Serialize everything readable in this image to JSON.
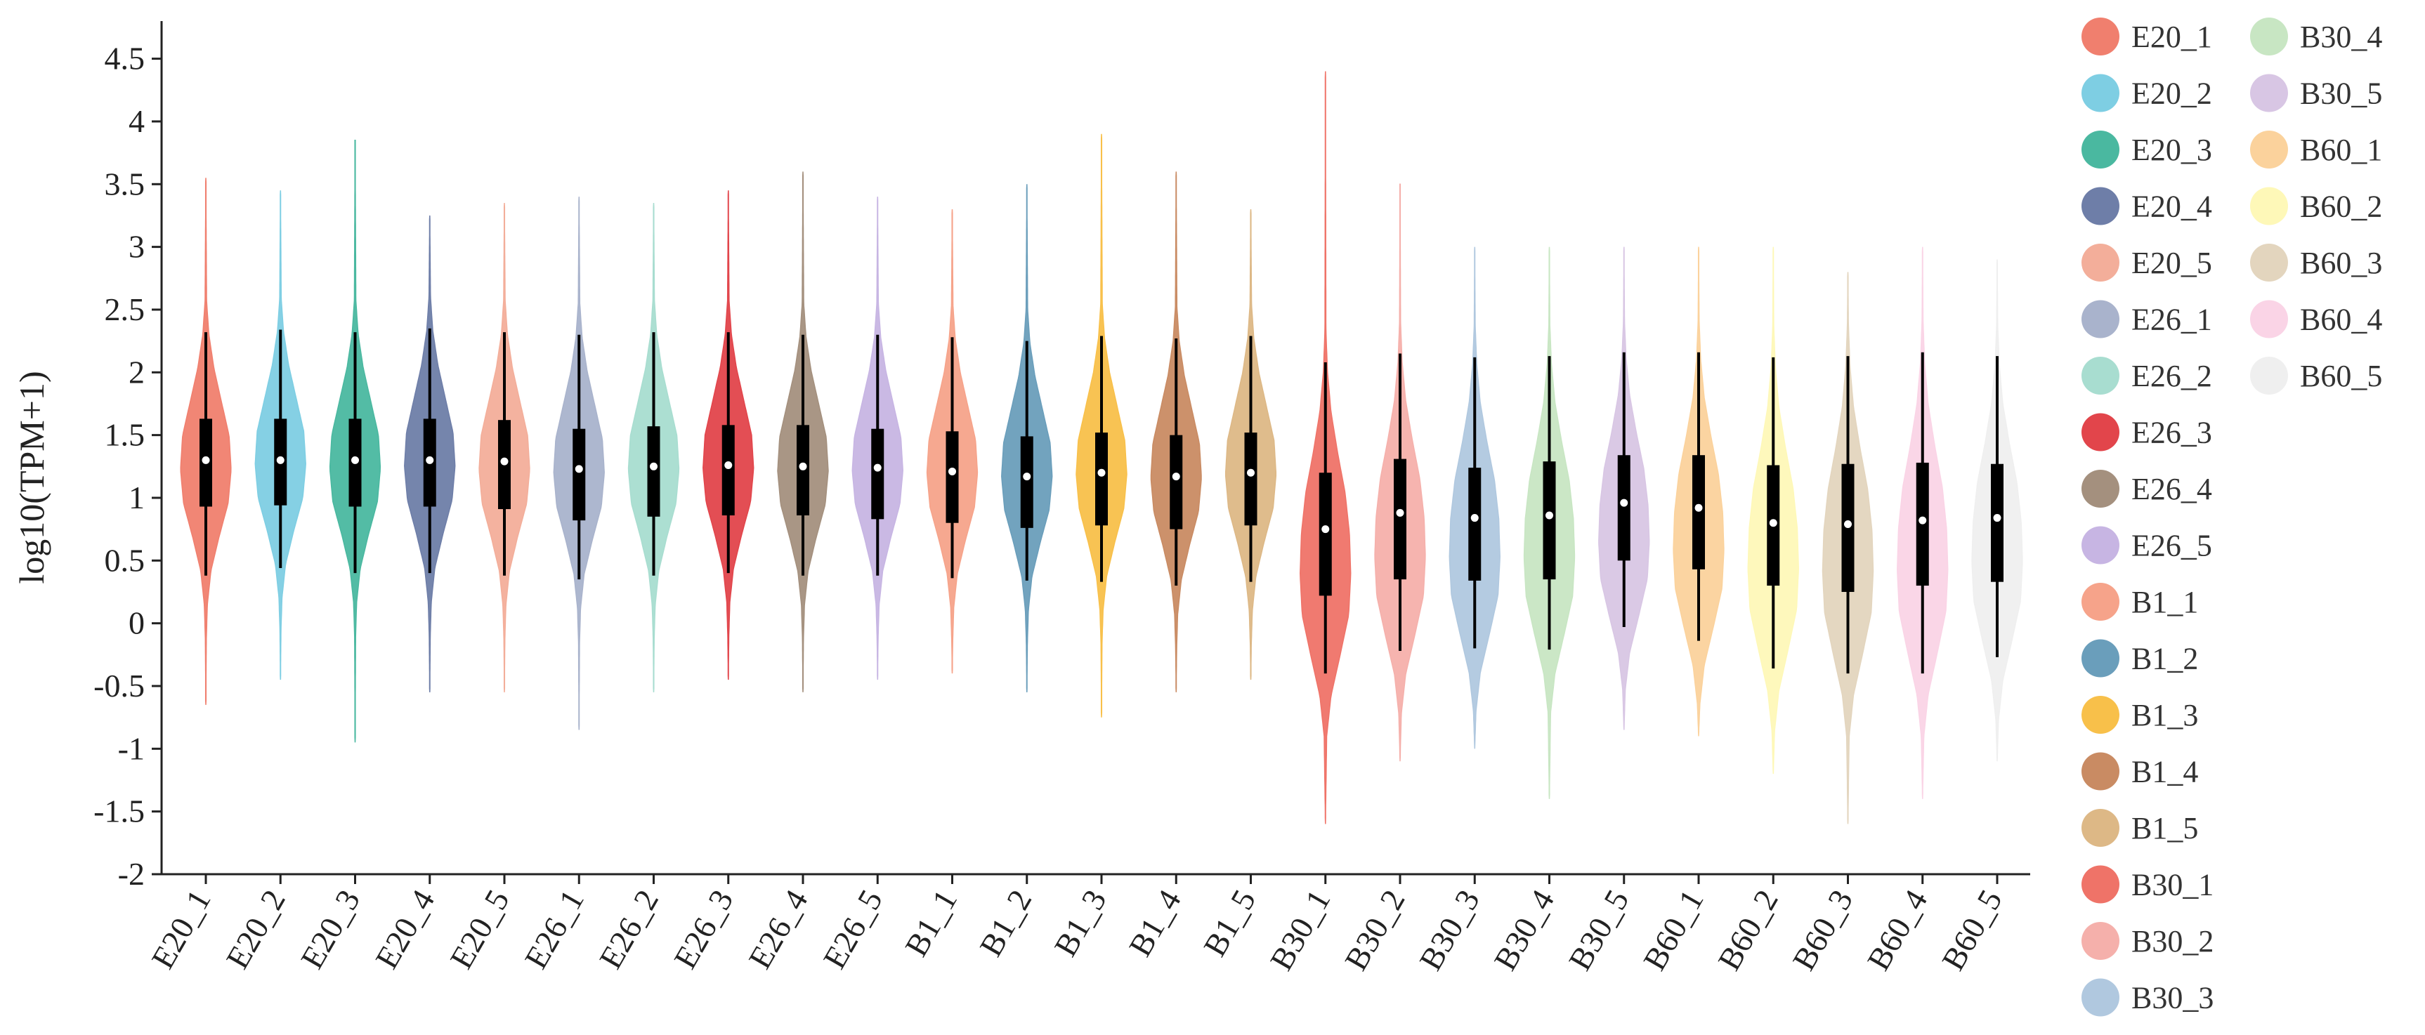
{
  "chart_data": {
    "type": "violin",
    "ylabel": "log10(TPM+1)",
    "xlabel": "",
    "ylim": [
      -2,
      4.8
    ],
    "yticks": [
      -2,
      -1.5,
      -1,
      -0.5,
      0,
      0.5,
      1,
      1.5,
      2,
      2.5,
      3,
      3.5,
      4,
      4.5
    ],
    "yticks_labels": [
      "-2",
      "-1.5",
      "-1",
      "-0.5",
      "0",
      "0.5",
      "1",
      "1.5",
      "2",
      "2.5",
      "3",
      "3.5",
      "4",
      "4.5"
    ],
    "legend_position": "right",
    "series": [
      {
        "name": "E20_1",
        "color": "#F07F6E",
        "median": 1.3,
        "q1": 0.93,
        "q3": 1.63,
        "whisker_low": 0.38,
        "whisker_high": 2.32,
        "min": -0.65,
        "max": 3.55,
        "density": [
          0.02,
          0.06,
          0.2,
          0.52,
          0.88,
          1.0,
          0.92,
          0.62,
          0.32,
          0.12,
          0.03
        ]
      },
      {
        "name": "E20_2",
        "color": "#7ECEE3",
        "median": 1.3,
        "q1": 0.94,
        "q3": 1.63,
        "whisker_low": 0.44,
        "whisker_high": 2.34,
        "min": -0.45,
        "max": 3.45,
        "density": [
          0.02,
          0.06,
          0.2,
          0.52,
          0.88,
          1.0,
          0.92,
          0.62,
          0.32,
          0.12,
          0.03
        ]
      },
      {
        "name": "E20_3",
        "color": "#4AB8A0",
        "median": 1.3,
        "q1": 0.93,
        "q3": 1.63,
        "whisker_low": 0.4,
        "whisker_high": 2.32,
        "min": -0.95,
        "max": 3.85,
        "density": [
          0.02,
          0.06,
          0.2,
          0.52,
          0.88,
          1.0,
          0.92,
          0.62,
          0.32,
          0.12,
          0.03
        ]
      },
      {
        "name": "E20_4",
        "color": "#6E7EA8",
        "median": 1.3,
        "q1": 0.93,
        "q3": 1.63,
        "whisker_low": 0.4,
        "whisker_high": 2.35,
        "min": -0.55,
        "max": 3.25,
        "density": [
          0.02,
          0.06,
          0.2,
          0.52,
          0.88,
          1.0,
          0.92,
          0.62,
          0.32,
          0.12,
          0.03
        ]
      },
      {
        "name": "E20_5",
        "color": "#F3AE9A",
        "median": 1.29,
        "q1": 0.91,
        "q3": 1.62,
        "whisker_low": 0.38,
        "whisker_high": 2.32,
        "min": -0.55,
        "max": 3.35,
        "density": [
          0.02,
          0.06,
          0.2,
          0.52,
          0.88,
          1.0,
          0.92,
          0.62,
          0.32,
          0.12,
          0.03
        ]
      },
      {
        "name": "E26_1",
        "color": "#A9B3CC",
        "median": 1.23,
        "q1": 0.82,
        "q3": 1.55,
        "whisker_low": 0.35,
        "whisker_high": 2.3,
        "min": -0.85,
        "max": 3.4,
        "density": [
          0.02,
          0.06,
          0.2,
          0.52,
          0.88,
          1.0,
          0.92,
          0.62,
          0.32,
          0.12,
          0.03
        ]
      },
      {
        "name": "E26_2",
        "color": "#A8DDD0",
        "median": 1.25,
        "q1": 0.85,
        "q3": 1.57,
        "whisker_low": 0.38,
        "whisker_high": 2.32,
        "min": -0.55,
        "max": 3.35,
        "density": [
          0.02,
          0.06,
          0.2,
          0.52,
          0.88,
          1.0,
          0.92,
          0.62,
          0.32,
          0.12,
          0.03
        ]
      },
      {
        "name": "E26_3",
        "color": "#E2454B",
        "median": 1.26,
        "q1": 0.86,
        "q3": 1.58,
        "whisker_low": 0.4,
        "whisker_high": 2.32,
        "min": -0.45,
        "max": 3.45,
        "density": [
          0.02,
          0.06,
          0.2,
          0.52,
          0.88,
          1.0,
          0.92,
          0.62,
          0.32,
          0.12,
          0.03
        ]
      },
      {
        "name": "E26_4",
        "color": "#A4907E",
        "median": 1.25,
        "q1": 0.86,
        "q3": 1.58,
        "whisker_low": 0.38,
        "whisker_high": 2.3,
        "min": -0.55,
        "max": 3.6,
        "density": [
          0.02,
          0.06,
          0.2,
          0.52,
          0.88,
          1.0,
          0.92,
          0.62,
          0.32,
          0.12,
          0.03
        ]
      },
      {
        "name": "E26_5",
        "color": "#C7B5E3",
        "median": 1.24,
        "q1": 0.83,
        "q3": 1.55,
        "whisker_low": 0.38,
        "whisker_high": 2.3,
        "min": -0.45,
        "max": 3.4,
        "density": [
          0.02,
          0.06,
          0.2,
          0.52,
          0.88,
          1.0,
          0.92,
          0.62,
          0.32,
          0.12,
          0.03
        ]
      },
      {
        "name": "B1_1",
        "color": "#F6A38A",
        "median": 1.21,
        "q1": 0.8,
        "q3": 1.53,
        "whisker_low": 0.36,
        "whisker_high": 2.28,
        "min": -0.4,
        "max": 3.3,
        "density": [
          0.02,
          0.06,
          0.2,
          0.52,
          0.88,
          1.0,
          0.92,
          0.62,
          0.32,
          0.12,
          0.03
        ]
      },
      {
        "name": "B1_2",
        "color": "#6A9EBB",
        "median": 1.17,
        "q1": 0.76,
        "q3": 1.49,
        "whisker_low": 0.34,
        "whisker_high": 2.25,
        "min": -0.55,
        "max": 3.5,
        "density": [
          0.02,
          0.06,
          0.2,
          0.52,
          0.88,
          1.0,
          0.92,
          0.62,
          0.32,
          0.12,
          0.03
        ]
      },
      {
        "name": "B1_3",
        "color": "#F8C04A",
        "median": 1.2,
        "q1": 0.78,
        "q3": 1.52,
        "whisker_low": 0.33,
        "whisker_high": 2.29,
        "min": -0.75,
        "max": 3.9,
        "density": [
          0.02,
          0.06,
          0.2,
          0.52,
          0.88,
          1.0,
          0.92,
          0.62,
          0.32,
          0.12,
          0.03
        ]
      },
      {
        "name": "B1_4",
        "color": "#C98B63",
        "median": 1.17,
        "q1": 0.75,
        "q3": 1.5,
        "whisker_low": 0.3,
        "whisker_high": 2.27,
        "min": -0.55,
        "max": 3.6,
        "density": [
          0.02,
          0.06,
          0.2,
          0.52,
          0.88,
          1.0,
          0.92,
          0.62,
          0.32,
          0.12,
          0.03
        ]
      },
      {
        "name": "B1_5",
        "color": "#DDB886",
        "median": 1.2,
        "q1": 0.78,
        "q3": 1.52,
        "whisker_low": 0.33,
        "whisker_high": 2.29,
        "min": -0.45,
        "max": 3.3,
        "density": [
          0.02,
          0.06,
          0.2,
          0.52,
          0.88,
          1.0,
          0.92,
          0.62,
          0.32,
          0.12,
          0.03
        ]
      },
      {
        "name": "B30_1",
        "color": "#EF7368",
        "median": 0.75,
        "q1": 0.22,
        "q3": 1.2,
        "whisker_low": -0.4,
        "whisker_high": 2.08,
        "min": -1.6,
        "max": 4.4,
        "density": [
          0.05,
          0.22,
          0.58,
          0.92,
          1.0,
          0.95,
          0.78,
          0.48,
          0.22,
          0.08,
          0.02
        ]
      },
      {
        "name": "B30_2",
        "color": "#F5B0AB",
        "median": 0.88,
        "q1": 0.35,
        "q3": 1.31,
        "whisker_low": -0.22,
        "whisker_high": 2.15,
        "min": -1.1,
        "max": 3.5,
        "density": [
          0.05,
          0.22,
          0.58,
          0.92,
          1.0,
          0.95,
          0.78,
          0.48,
          0.22,
          0.08,
          0.02
        ]
      },
      {
        "name": "B30_3",
        "color": "#B0C8DF",
        "median": 0.84,
        "q1": 0.34,
        "q3": 1.24,
        "whisker_low": -0.2,
        "whisker_high": 2.12,
        "min": -1.0,
        "max": 3.0,
        "density": [
          0.05,
          0.22,
          0.58,
          0.92,
          1.0,
          0.95,
          0.78,
          0.48,
          0.22,
          0.08,
          0.02
        ]
      },
      {
        "name": "B30_4",
        "color": "#C8E6C3",
        "median": 0.86,
        "q1": 0.35,
        "q3": 1.29,
        "whisker_low": -0.21,
        "whisker_high": 2.13,
        "min": -1.4,
        "max": 3.0,
        "density": [
          0.05,
          0.22,
          0.58,
          0.92,
          1.0,
          0.95,
          0.78,
          0.48,
          0.22,
          0.08,
          0.02
        ]
      },
      {
        "name": "B30_5",
        "color": "#D8C6E4",
        "median": 0.96,
        "q1": 0.5,
        "q3": 1.34,
        "whisker_low": -0.03,
        "whisker_high": 2.16,
        "min": -0.85,
        "max": 3.0,
        "density": [
          0.05,
          0.22,
          0.58,
          0.92,
          1.0,
          0.95,
          0.78,
          0.48,
          0.22,
          0.08,
          0.02
        ]
      },
      {
        "name": "B60_1",
        "color": "#FBD29C",
        "median": 0.92,
        "q1": 0.43,
        "q3": 1.34,
        "whisker_low": -0.14,
        "whisker_high": 2.16,
        "min": -0.9,
        "max": 3.0,
        "density": [
          0.05,
          0.22,
          0.58,
          0.92,
          1.0,
          0.95,
          0.78,
          0.48,
          0.22,
          0.08,
          0.02
        ]
      },
      {
        "name": "B60_2",
        "color": "#FEF8B8",
        "median": 0.8,
        "q1": 0.3,
        "q3": 1.26,
        "whisker_low": -0.36,
        "whisker_high": 2.12,
        "min": -1.2,
        "max": 3.0,
        "density": [
          0.05,
          0.22,
          0.58,
          0.92,
          1.0,
          0.95,
          0.78,
          0.48,
          0.22,
          0.08,
          0.02
        ]
      },
      {
        "name": "B60_3",
        "color": "#E3D5BE",
        "median": 0.79,
        "q1": 0.25,
        "q3": 1.27,
        "whisker_low": -0.4,
        "whisker_high": 2.13,
        "min": -1.6,
        "max": 2.8,
        "density": [
          0.05,
          0.22,
          0.58,
          0.92,
          1.0,
          0.95,
          0.78,
          0.48,
          0.22,
          0.08,
          0.02
        ]
      },
      {
        "name": "B60_4",
        "color": "#FAD4E6",
        "median": 0.82,
        "q1": 0.3,
        "q3": 1.28,
        "whisker_low": -0.4,
        "whisker_high": 2.16,
        "min": -1.4,
        "max": 3.0,
        "density": [
          0.05,
          0.22,
          0.58,
          0.92,
          1.0,
          0.95,
          0.78,
          0.48,
          0.22,
          0.08,
          0.02
        ]
      },
      {
        "name": "B60_5",
        "color": "#EFEFEF",
        "median": 0.84,
        "q1": 0.33,
        "q3": 1.27,
        "whisker_low": -0.27,
        "whisker_high": 2.13,
        "min": -1.1,
        "max": 2.9,
        "density": [
          0.05,
          0.22,
          0.58,
          0.92,
          1.0,
          0.95,
          0.78,
          0.48,
          0.22,
          0.08,
          0.02
        ]
      }
    ]
  }
}
